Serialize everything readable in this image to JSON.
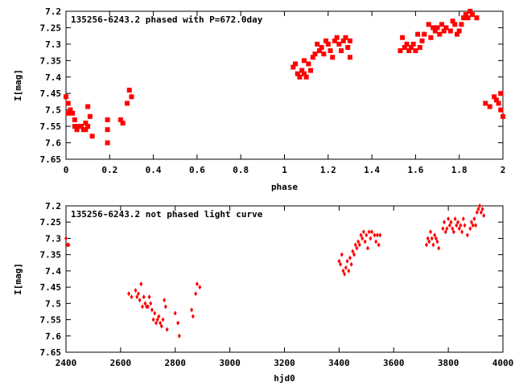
{
  "chart_data": [
    {
      "type": "scatter",
      "title": "135256-6243.2 phased with P=672.0day",
      "xlabel": "phase",
      "ylabel": "I[mag]",
      "xlim": [
        0,
        2
      ],
      "ylim": [
        7.65,
        7.2
      ],
      "y_inverted": true,
      "grid": false,
      "marker": "filled-square",
      "color": "#ff0000",
      "xticks": [
        "0",
        "0.2",
        "0.4",
        "0.6",
        "0.8",
        "1",
        "1.2",
        "1.4",
        "1.6",
        "1.8",
        "2"
      ],
      "xtick_values": [
        0,
        0.2,
        0.4,
        0.6,
        0.8,
        1.0,
        1.2,
        1.4,
        1.6,
        1.8,
        2.0
      ],
      "yticks": [
        "7.2",
        "7.25",
        "7.3",
        "7.35",
        "7.4",
        "7.45",
        "7.5",
        "7.55",
        "7.6",
        "7.65"
      ],
      "ytick_values": [
        7.2,
        7.25,
        7.3,
        7.35,
        7.4,
        7.45,
        7.5,
        7.55,
        7.6,
        7.65
      ],
      "points": [
        [
          0.0,
          7.46
        ],
        [
          0.01,
          7.48
        ],
        [
          0.01,
          7.51
        ],
        [
          0.02,
          7.5
        ],
        [
          0.03,
          7.51
        ],
        [
          0.04,
          7.53
        ],
        [
          0.04,
          7.55
        ],
        [
          0.05,
          7.56
        ],
        [
          0.06,
          7.55
        ],
        [
          0.07,
          7.55
        ],
        [
          0.08,
          7.56
        ],
        [
          0.09,
          7.54
        ],
        [
          0.09,
          7.56
        ],
        [
          0.1,
          7.49
        ],
        [
          0.1,
          7.55
        ],
        [
          0.11,
          7.52
        ],
        [
          0.12,
          7.58
        ],
        [
          0.19,
          7.6
        ],
        [
          0.19,
          7.56
        ],
        [
          0.19,
          7.53
        ],
        [
          0.25,
          7.53
        ],
        [
          0.26,
          7.54
        ],
        [
          0.28,
          7.48
        ],
        [
          0.29,
          7.44
        ],
        [
          0.3,
          7.46
        ],
        [
          1.04,
          7.37
        ],
        [
          1.05,
          7.36
        ],
        [
          1.06,
          7.39
        ],
        [
          1.07,
          7.4
        ],
        [
          1.08,
          7.38
        ],
        [
          1.09,
          7.39
        ],
        [
          1.09,
          7.35
        ],
        [
          1.1,
          7.4
        ],
        [
          1.11,
          7.36
        ],
        [
          1.12,
          7.38
        ],
        [
          1.13,
          7.34
        ],
        [
          1.14,
          7.33
        ],
        [
          1.15,
          7.3
        ],
        [
          1.16,
          7.32
        ],
        [
          1.17,
          7.31
        ],
        [
          1.18,
          7.33
        ],
        [
          1.19,
          7.29
        ],
        [
          1.2,
          7.3
        ],
        [
          1.21,
          7.32
        ],
        [
          1.22,
          7.34
        ],
        [
          1.23,
          7.29
        ],
        [
          1.24,
          7.28
        ],
        [
          1.25,
          7.3
        ],
        [
          1.26,
          7.32
        ],
        [
          1.27,
          7.29
        ],
        [
          1.28,
          7.28
        ],
        [
          1.29,
          7.31
        ],
        [
          1.3,
          7.34
        ],
        [
          1.3,
          7.29
        ],
        [
          1.53,
          7.32
        ],
        [
          1.54,
          7.28
        ],
        [
          1.55,
          7.31
        ],
        [
          1.56,
          7.3
        ],
        [
          1.57,
          7.32
        ],
        [
          1.58,
          7.31
        ],
        [
          1.59,
          7.3
        ],
        [
          1.6,
          7.32
        ],
        [
          1.61,
          7.27
        ],
        [
          1.62,
          7.31
        ],
        [
          1.63,
          7.29
        ],
        [
          1.64,
          7.27
        ],
        [
          1.66,
          7.24
        ],
        [
          1.67,
          7.28
        ],
        [
          1.68,
          7.25
        ],
        [
          1.69,
          7.26
        ],
        [
          1.7,
          7.25
        ],
        [
          1.71,
          7.27
        ],
        [
          1.72,
          7.24
        ],
        [
          1.73,
          7.26
        ],
        [
          1.74,
          7.25
        ],
        [
          1.76,
          7.26
        ],
        [
          1.77,
          7.23
        ],
        [
          1.78,
          7.24
        ],
        [
          1.79,
          7.27
        ],
        [
          1.8,
          7.26
        ],
        [
          1.81,
          7.24
        ],
        [
          1.82,
          7.22
        ],
        [
          1.83,
          7.21
        ],
        [
          1.84,
          7.22
        ],
        [
          1.85,
          7.2
        ],
        [
          1.86,
          7.21
        ],
        [
          1.88,
          7.22
        ],
        [
          1.92,
          7.48
        ],
        [
          1.94,
          7.49
        ],
        [
          1.96,
          7.46
        ],
        [
          1.97,
          7.47
        ],
        [
          1.98,
          7.48
        ],
        [
          1.99,
          7.45
        ],
        [
          1.99,
          7.5
        ],
        [
          2.0,
          7.52
        ]
      ]
    },
    {
      "type": "scatter",
      "title": "135256-6243.2 not phased light curve",
      "xlabel": "hjd0",
      "ylabel": "I[mag]",
      "xlim": [
        2400,
        4000
      ],
      "ylim": [
        7.65,
        7.2
      ],
      "y_inverted": true,
      "grid": false,
      "marker": "small-diamond",
      "color": "#ff0000",
      "xticks": [
        "2400",
        "2600",
        "2800",
        "3000",
        "3200",
        "3400",
        "3600",
        "3800",
        "4000"
      ],
      "xtick_values": [
        2400,
        2600,
        2800,
        3000,
        3200,
        3400,
        3600,
        3800,
        4000
      ],
      "yticks": [
        "7.2",
        "7.25",
        "7.3",
        "7.35",
        "7.4",
        "7.45",
        "7.5",
        "7.55",
        "7.6",
        "7.65"
      ],
      "ytick_values": [
        7.2,
        7.25,
        7.3,
        7.35,
        7.4,
        7.45,
        7.5,
        7.55,
        7.6,
        7.65
      ],
      "points": [
        [
          2400,
          7.3
        ],
        [
          2405,
          7.32
        ],
        [
          2410,
          7.32
        ],
        [
          2630,
          7.47
        ],
        [
          2640,
          7.48
        ],
        [
          2655,
          7.46
        ],
        [
          2660,
          7.48
        ],
        [
          2665,
          7.47
        ],
        [
          2670,
          7.49
        ],
        [
          2675,
          7.44
        ],
        [
          2680,
          7.51
        ],
        [
          2685,
          7.48
        ],
        [
          2690,
          7.5
        ],
        [
          2695,
          7.51
        ],
        [
          2700,
          7.51
        ],
        [
          2705,
          7.48
        ],
        [
          2710,
          7.5
        ],
        [
          2715,
          7.52
        ],
        [
          2720,
          7.55
        ],
        [
          2725,
          7.53
        ],
        [
          2730,
          7.56
        ],
        [
          2735,
          7.55
        ],
        [
          2740,
          7.54
        ],
        [
          2745,
          7.56
        ],
        [
          2750,
          7.57
        ],
        [
          2755,
          7.55
        ],
        [
          2760,
          7.49
        ],
        [
          2765,
          7.51
        ],
        [
          2770,
          7.58
        ],
        [
          2800,
          7.53
        ],
        [
          2810,
          7.56
        ],
        [
          2815,
          7.6
        ],
        [
          2860,
          7.52
        ],
        [
          2865,
          7.54
        ],
        [
          2875,
          7.47
        ],
        [
          2880,
          7.44
        ],
        [
          2890,
          7.45
        ],
        [
          3400,
          7.37
        ],
        [
          3405,
          7.38
        ],
        [
          3410,
          7.35
        ],
        [
          3415,
          7.4
        ],
        [
          3420,
          7.41
        ],
        [
          3425,
          7.39
        ],
        [
          3430,
          7.37
        ],
        [
          3435,
          7.4
        ],
        [
          3440,
          7.36
        ],
        [
          3445,
          7.38
        ],
        [
          3450,
          7.34
        ],
        [
          3455,
          7.35
        ],
        [
          3460,
          7.32
        ],
        [
          3465,
          7.33
        ],
        [
          3470,
          7.31
        ],
        [
          3475,
          7.32
        ],
        [
          3480,
          7.29
        ],
        [
          3485,
          7.3
        ],
        [
          3490,
          7.28
        ],
        [
          3495,
          7.31
        ],
        [
          3500,
          7.29
        ],
        [
          3505,
          7.33
        ],
        [
          3510,
          7.28
        ],
        [
          3515,
          7.3
        ],
        [
          3520,
          7.28
        ],
        [
          3530,
          7.29
        ],
        [
          3535,
          7.31
        ],
        [
          3540,
          7.29
        ],
        [
          3545,
          7.32
        ],
        [
          3550,
          7.29
        ],
        [
          3720,
          7.32
        ],
        [
          3725,
          7.3
        ],
        [
          3730,
          7.31
        ],
        [
          3735,
          7.28
        ],
        [
          3740,
          7.3
        ],
        [
          3745,
          7.32
        ],
        [
          3750,
          7.29
        ],
        [
          3755,
          7.3
        ],
        [
          3760,
          7.31
        ],
        [
          3765,
          7.33
        ],
        [
          3780,
          7.27
        ],
        [
          3785,
          7.25
        ],
        [
          3790,
          7.28
        ],
        [
          3795,
          7.27
        ],
        [
          3800,
          7.24
        ],
        [
          3805,
          7.26
        ],
        [
          3810,
          7.25
        ],
        [
          3815,
          7.27
        ],
        [
          3820,
          7.28
        ],
        [
          3825,
          7.24
        ],
        [
          3830,
          7.26
        ],
        [
          3835,
          7.25
        ],
        [
          3840,
          7.27
        ],
        [
          3845,
          7.26
        ],
        [
          3850,
          7.28
        ],
        [
          3855,
          7.24
        ],
        [
          3860,
          7.26
        ],
        [
          3870,
          7.29
        ],
        [
          3880,
          7.27
        ],
        [
          3885,
          7.25
        ],
        [
          3890,
          7.26
        ],
        [
          3895,
          7.24
        ],
        [
          3900,
          7.26
        ],
        [
          3905,
          7.22
        ],
        [
          3910,
          7.21
        ],
        [
          3915,
          7.2
        ],
        [
          3920,
          7.22
        ],
        [
          3925,
          7.21
        ],
        [
          3930,
          7.23
        ]
      ]
    }
  ]
}
